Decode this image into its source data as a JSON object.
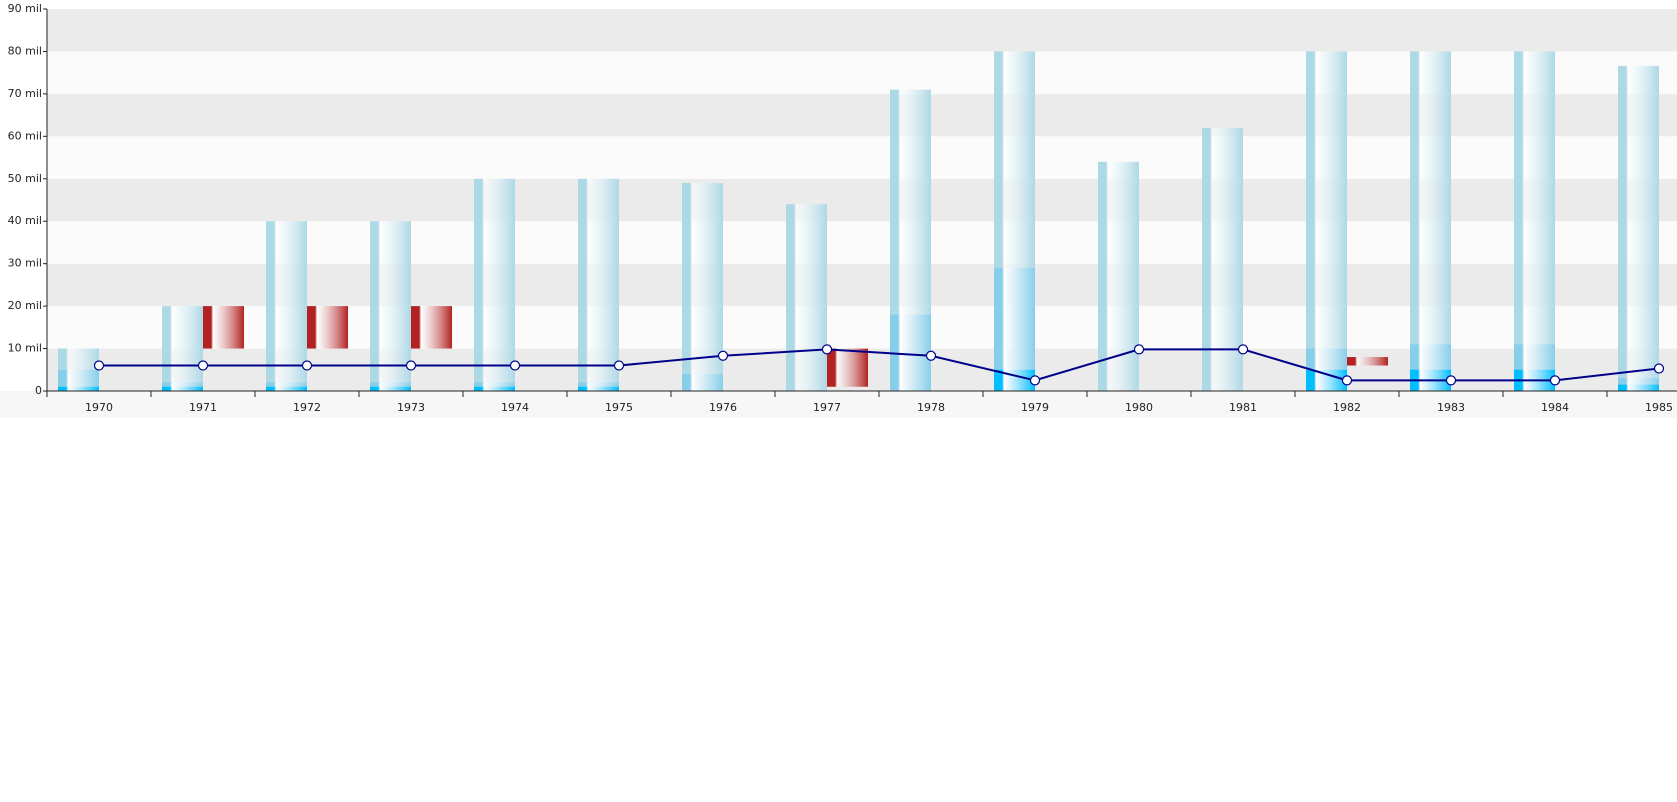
{
  "chart_data": {
    "type": "bar",
    "categories": [
      "1970",
      "1971",
      "1972",
      "1973",
      "1974",
      "1975",
      "1976",
      "1977",
      "1978",
      "1979",
      "1980",
      "1981",
      "1982",
      "1983",
      "1984",
      "1985"
    ],
    "ylim": [
      0,
      90
    ],
    "yticks": [
      0,
      {
        "value": 10,
        "label": "10 mil"
      },
      {
        "value": 20,
        "label": "20 mil"
      },
      {
        "value": 30,
        "label": "30 mil"
      },
      {
        "value": 40,
        "label": "40 mil"
      },
      {
        "value": 50,
        "label": "50 mil"
      },
      {
        "value": 60,
        "label": "60 mil"
      },
      {
        "value": 70,
        "label": "70 mil"
      },
      {
        "value": 80,
        "label": "80 mil"
      },
      {
        "value": 90,
        "label": "90 mil"
      }
    ],
    "grid": true,
    "series": [
      {
        "type": "bar",
        "color": "#add8e6",
        "values": [
          10,
          20,
          40,
          40,
          50,
          50,
          49,
          44,
          71,
          80,
          54,
          62,
          80,
          80,
          80,
          76.6
        ]
      },
      {
        "type": "bar",
        "color": "#87ceeb",
        "values": [
          5,
          2,
          2,
          2,
          2,
          2,
          4,
          null,
          18,
          29,
          null,
          null,
          10,
          11,
          11,
          3
        ]
      },
      {
        "type": "bar",
        "color": "#00bfff",
        "values": [
          1,
          1,
          1,
          1,
          1,
          1,
          null,
          null,
          null,
          5,
          null,
          null,
          5,
          5,
          5,
          1.5
        ]
      },
      {
        "type": "range",
        "color": "#b22222",
        "low": [
          null,
          10,
          10,
          10,
          null,
          null,
          null,
          1,
          null,
          null,
          null,
          null,
          6,
          null,
          null,
          null
        ],
        "high": [
          null,
          20,
          20,
          20,
          null,
          null,
          null,
          10,
          null,
          null,
          null,
          null,
          8,
          null,
          null,
          null
        ]
      },
      {
        "type": "line",
        "color": "#00008b",
        "values": [
          6,
          6,
          6,
          6,
          6,
          6,
          8.3,
          9.8,
          8.3,
          2.5,
          9.8,
          9.8,
          2.5,
          2.5,
          2.5,
          5.3
        ]
      }
    ]
  }
}
